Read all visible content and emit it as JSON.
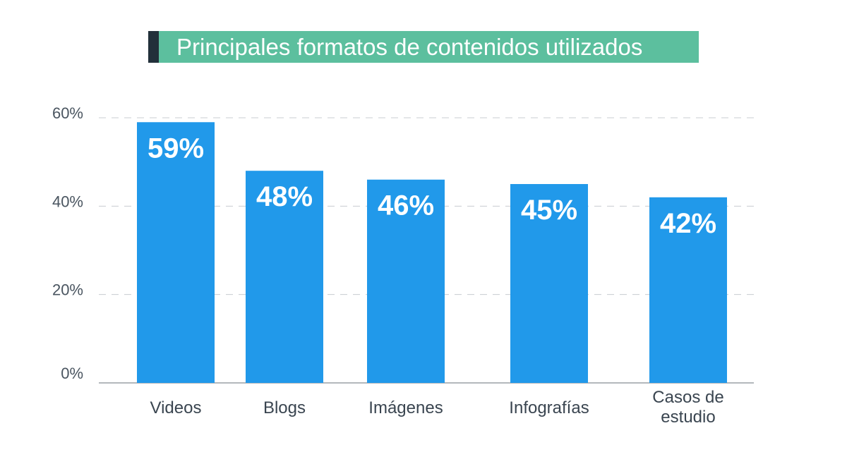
{
  "chart_data": {
    "type": "bar",
    "title": "Principales formatos de contenidos utilizados",
    "categories": [
      [
        "Videos"
      ],
      [
        "Blogs"
      ],
      [
        "Imágenes"
      ],
      [
        "Infografías"
      ],
      [
        "Casos de",
        "estudio"
      ]
    ],
    "values": [
      59,
      48,
      46,
      45,
      42
    ],
    "data_labels": [
      "59%",
      "48%",
      "46%",
      "45%",
      "42%"
    ],
    "yticks": [
      0,
      20,
      40,
      60
    ],
    "ytick_labels": [
      "0%",
      "20%",
      "40%",
      "60%"
    ],
    "ylim": [
      0,
      61
    ],
    "grid": true,
    "grid_style": "dashed",
    "legend": "none",
    "xlabel": "",
    "ylabel": ""
  },
  "colors": {
    "bar": "#2199ea",
    "title_bg": "#5cbf9e",
    "title_accent": "#22303a",
    "grid": "#c8ccd0",
    "axis": "#9aa0a6"
  }
}
